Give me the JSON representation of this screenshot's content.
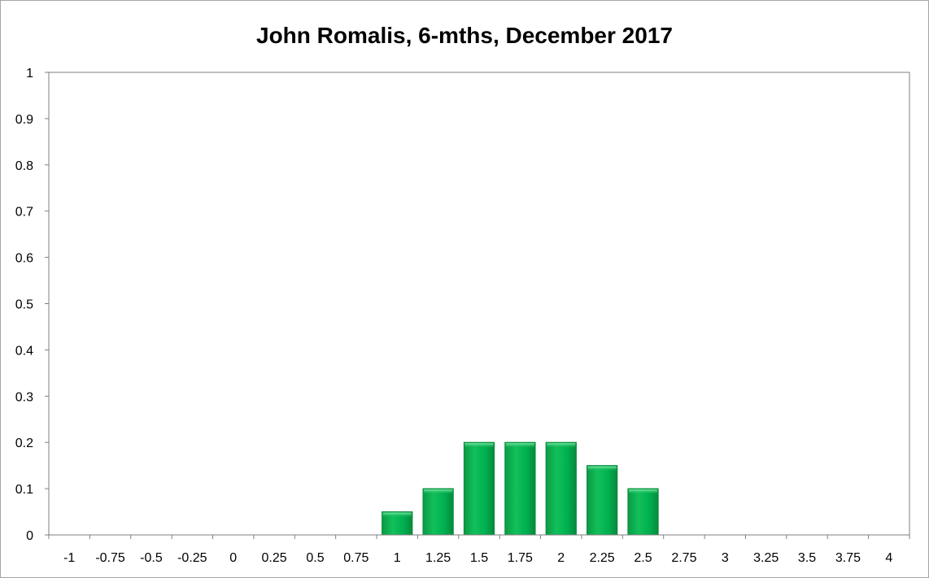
{
  "chart_data": {
    "type": "bar",
    "title": "John Romalis, 6-mths, December 2017",
    "xlabel": "",
    "ylabel": "",
    "categories": [
      "-1",
      "-0.75",
      "-0.5",
      "-0.25",
      "0",
      "0.25",
      "0.5",
      "0.75",
      "1",
      "1.25",
      "1.5",
      "1.75",
      "2",
      "2.25",
      "2.5",
      "2.75",
      "3",
      "3.25",
      "3.5",
      "3.75",
      "4"
    ],
    "values": [
      0,
      0,
      0,
      0,
      0,
      0,
      0,
      0,
      0.05,
      0.1,
      0.2,
      0.2,
      0.2,
      0.15,
      0.1,
      0,
      0,
      0,
      0,
      0,
      0
    ],
    "ylim": [
      0,
      1
    ],
    "yticks": [
      "0",
      "0.1",
      "0.2",
      "0.3",
      "0.4",
      "0.5",
      "0.6",
      "0.7",
      "0.8",
      "0.9",
      "1"
    ],
    "grid": false,
    "legend": "none",
    "bar_color": "#00b050"
  }
}
